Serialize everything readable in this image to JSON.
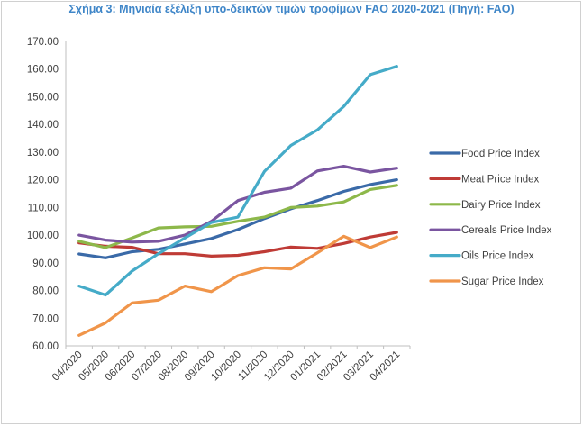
{
  "chart_data": {
    "type": "line",
    "title": "Σχήμα 3: Μηνιαία εξέλιξη υπο-δεικτών τιμών τροφίμων FAO 2020-2021 (Πηγή: FAO)",
    "xlabel": "",
    "ylabel": "",
    "categories": [
      "04/2020",
      "05/2020",
      "06/2020",
      "07/2020",
      "08/2020",
      "09/2020",
      "10/2020",
      "11/2020",
      "12/2020",
      "01/2021",
      "02/2021",
      "03/2021",
      "04/2021"
    ],
    "ylim": [
      60,
      170
    ],
    "yticks": [
      "60.00",
      "70.00",
      "80.00",
      "90.00",
      "100.00",
      "110.00",
      "120.00",
      "130.00",
      "140.00",
      "150.00",
      "160.00",
      "170.00"
    ],
    "grid": false,
    "legend_position": "right",
    "series": [
      {
        "name": "Food Price Index",
        "color": "#3a6aa8",
        "values": [
          93.2,
          91.8,
          94.0,
          94.9,
          96.8,
          98.8,
          102.0,
          106.0,
          109.5,
          112.5,
          115.8,
          118.3,
          120.0
        ]
      },
      {
        "name": "Meat Price Index",
        "color": "#bf3b36",
        "values": [
          97.2,
          96.0,
          95.6,
          93.3,
          93.3,
          92.4,
          92.7,
          94.0,
          95.7,
          95.2,
          97.0,
          99.3,
          101.0
        ]
      },
      {
        "name": "Dairy Price Index",
        "color": "#8db84a",
        "values": [
          97.8,
          95.5,
          99.0,
          102.6,
          103.0,
          103.2,
          105.0,
          106.5,
          110.0,
          110.5,
          112.0,
          116.5,
          118.0
        ]
      },
      {
        "name": "Cereals Price Index",
        "color": "#7a55a0",
        "values": [
          100.0,
          98.2,
          97.5,
          97.8,
          100.0,
          105.0,
          112.5,
          115.5,
          117.0,
          123.2,
          124.9,
          122.8,
          124.2
        ]
      },
      {
        "name": "Oils Price Index",
        "color": "#45abc8",
        "values": [
          81.6,
          78.4,
          87.0,
          93.3,
          99.0,
          104.6,
          106.5,
          123.0,
          132.4,
          138.0,
          146.5,
          158.0,
          161.0
        ]
      },
      {
        "name": "Sugar Price Index",
        "color": "#f0954a",
        "values": [
          63.8,
          68.3,
          75.5,
          76.5,
          81.6,
          79.6,
          85.4,
          88.2,
          87.8,
          93.6,
          99.6,
          95.5,
          99.3
        ]
      }
    ]
  }
}
